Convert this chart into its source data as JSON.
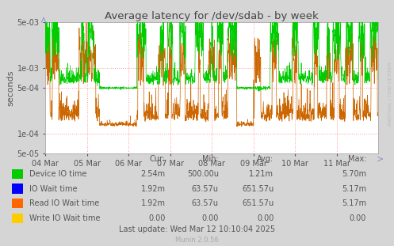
{
  "title": "Average latency for /dev/sdab - by week",
  "ylabel": "seconds",
  "bg_color": "#d5d5d5",
  "plot_bg_color": "#ffffff",
  "grid_color": "#ff9999",
  "xlim_days": 8,
  "ylim": [
    5e-05,
    0.005
  ],
  "yticks": [
    5e-05,
    0.0001,
    0.0005,
    0.001,
    0.005
  ],
  "ytick_labels": [
    "5e-05",
    "1e-04",
    "5e-04",
    "1e-03",
    "5e-03"
  ],
  "xtick_labels": [
    "04 Mar",
    "05 Mar",
    "06 Mar",
    "07 Mar",
    "08 Mar",
    "09 Mar",
    "10 Mar",
    "11 Mar"
  ],
  "line_green": "#00cc00",
  "line_orange": "#cc6600",
  "title_color": "#444444",
  "label_color": "#555555",
  "legend_labels": [
    "Device IO time",
    "IO Wait time",
    "Read IO Wait time",
    "Write IO Wait time"
  ],
  "legend_colors": [
    "#00cc00",
    "#0000ff",
    "#ff6600",
    "#ffcc00"
  ],
  "stats_cur": [
    "2.54m",
    "1.92m",
    "1.92m",
    "0.00"
  ],
  "stats_min": [
    "500.00u",
    "63.57u",
    "63.57u",
    "0.00"
  ],
  "stats_avg": [
    "1.21m",
    "651.57u",
    "651.57u",
    "0.00"
  ],
  "stats_max": [
    "5.70m",
    "5.17m",
    "5.17m",
    "0.00"
  ],
  "footer": "Last update: Wed Mar 12 10:10:04 2025",
  "munin_version": "Munin 2.0.56",
  "rrdtool_label": "RRDTOOL / TOBI OETIKER"
}
